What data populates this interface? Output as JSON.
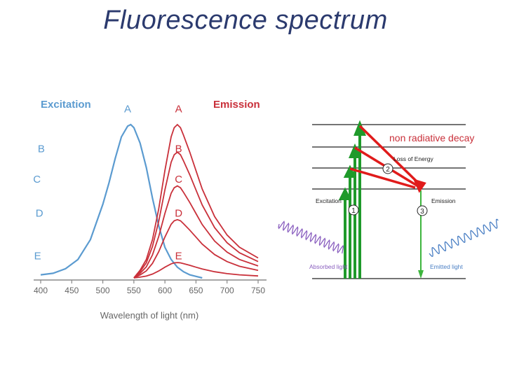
{
  "slide_title": "Fluorescence spectrum",
  "chart_data": {
    "type": "line",
    "legend": {
      "excitation": "Excitation",
      "emission": "Emission"
    },
    "colors": {
      "excitation": "#5b9bd0",
      "emission": "#c9303a",
      "axis_text": "#666666"
    },
    "xlabel": "Wavelength of light (nm)",
    "xlim": [
      400,
      760
    ],
    "xticks": [
      400,
      450,
      500,
      550,
      600,
      650,
      700,
      750
    ],
    "excitation_series": [
      {
        "name": "Excitation",
        "x": [
          400,
          420,
          440,
          460,
          480,
          500,
          510,
          520,
          530,
          540,
          545,
          550,
          560,
          570,
          580,
          590,
          600,
          610,
          620,
          630,
          640,
          650,
          660
        ],
        "y": [
          0.02,
          0.03,
          0.06,
          0.12,
          0.25,
          0.48,
          0.62,
          0.78,
          0.92,
          0.99,
          1.0,
          0.98,
          0.88,
          0.72,
          0.52,
          0.34,
          0.2,
          0.12,
          0.07,
          0.04,
          0.02,
          0.01,
          0.0
        ]
      }
    ],
    "excitation_labels": [
      {
        "text": "A",
        "x": 540,
        "y": 1.08
      },
      {
        "text": "B",
        "x": 401,
        "y": 0.82
      },
      {
        "text": "C",
        "x": 394,
        "y": 0.62
      },
      {
        "text": "D",
        "x": 398,
        "y": 0.4
      },
      {
        "text": "E",
        "x": 395,
        "y": 0.12
      }
    ],
    "emission_series": [
      {
        "name": "A",
        "scale": 1.0
      },
      {
        "name": "B",
        "scale": 0.82
      },
      {
        "name": "C",
        "scale": 0.6
      },
      {
        "name": "D",
        "scale": 0.38
      },
      {
        "name": "E",
        "scale": 0.1
      }
    ],
    "emission_shape": {
      "x": [
        550,
        560,
        570,
        580,
        590,
        600,
        610,
        615,
        620,
        625,
        630,
        640,
        650,
        660,
        680,
        700,
        720,
        750
      ],
      "y": [
        0.0,
        0.05,
        0.12,
        0.25,
        0.45,
        0.7,
        0.92,
        0.98,
        1.0,
        0.98,
        0.93,
        0.82,
        0.7,
        0.58,
        0.4,
        0.28,
        0.2,
        0.13
      ]
    },
    "emission_labels": [
      {
        "text": "A",
        "x": 622,
        "y": 1.08
      },
      {
        "text": "B",
        "x": 622,
        "y": 0.82
      },
      {
        "text": "C",
        "x": 622,
        "y": 0.62
      },
      {
        "text": "D",
        "x": 622,
        "y": 0.4
      },
      {
        "text": "E",
        "x": 622,
        "y": 0.12
      }
    ]
  },
  "diagram": {
    "annotation": "non radiative decay",
    "loss_of_energy": "Loss of Energy",
    "excitation": "Excitation",
    "emission": "Emission",
    "absorbed_light": "Absorbed light",
    "emitted_light": "Emitted light",
    "step1": "1",
    "step2": "2",
    "step3": "3",
    "colors": {
      "arrow_green": "#1f9a2a",
      "arrow_red": "#e01b1b",
      "wave_purple": "#8a5fbf",
      "wave_blue": "#4a7fc4",
      "text_purple": "#8a5fbf",
      "text_blue": "#4a7fc4"
    }
  }
}
